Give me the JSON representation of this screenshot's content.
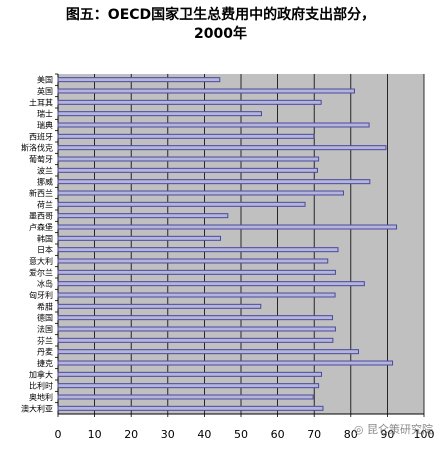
{
  "chart_data": {
    "type": "bar",
    "orientation": "horizontal",
    "title": "图五：OECD国家卫生总费用中的政府支出部分，",
    "subtitle": "2000年",
    "categories": [
      "美国",
      "英国",
      "土耳其",
      "瑞士",
      "瑞典",
      "西班牙",
      "斯洛伐克",
      "葡萄牙",
      "波兰",
      "挪威",
      "新西兰",
      "荷兰",
      "墨西哥",
      "卢森堡",
      "韩国",
      "日本",
      "意大利",
      "爱尔兰",
      "冰岛",
      "匈牙利",
      "希腊",
      "德国",
      "法国",
      "芬兰",
      "丹麦",
      "捷克",
      "加拿大",
      "比利时",
      "奥地利",
      "澳大利亚"
    ],
    "values": [
      44.2,
      81.0,
      71.9,
      55.6,
      85.0,
      69.9,
      89.6,
      71.2,
      70.9,
      85.2,
      78.0,
      67.5,
      46.4,
      92.5,
      44.4,
      76.5,
      73.7,
      75.8,
      83.7,
      75.7,
      55.4,
      75.0,
      75.8,
      75.1,
      82.1,
      91.4,
      72.0,
      71.2,
      69.7,
      72.4
    ],
    "xlim": [
      0,
      100
    ],
    "xticks": [
      0,
      10,
      20,
      30,
      40,
      50,
      60,
      70,
      80,
      90,
      100
    ],
    "bar_color": "#4a4a9a",
    "bar_fill": "#b4b4dc",
    "plot_background": "#c0c0c0",
    "grid": true
  },
  "watermark": "昆仑策研究院",
  "watermark_icon": "wechat-icon"
}
